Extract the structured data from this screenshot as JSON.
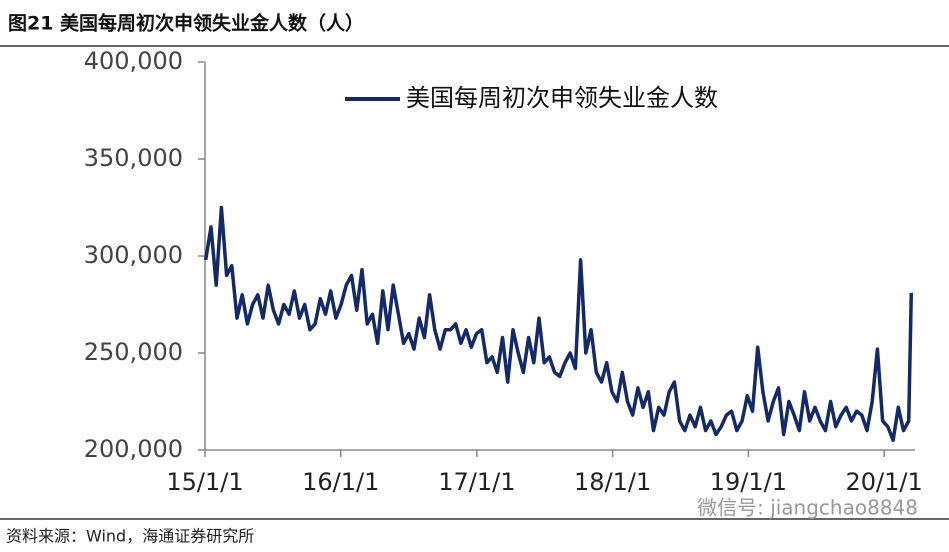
{
  "chart_data": {
    "type": "line",
    "title": "图21 美国每周初次申领失业金人数（人）",
    "source": "资料来源：Wind，海通证券研究所",
    "watermark": "微信号: jiangchao8848",
    "legend": "top",
    "x": [
      "2015-01-03",
      "2015-01-17",
      "2015-01-31",
      "2015-02-14",
      "2015-02-28",
      "2015-03-14",
      "2015-03-28",
      "2015-04-11",
      "2015-04-25",
      "2015-05-09",
      "2015-05-23",
      "2015-06-06",
      "2015-06-20",
      "2015-07-04",
      "2015-07-18",
      "2015-08-01",
      "2015-08-15",
      "2015-08-29",
      "2015-09-12",
      "2015-09-26",
      "2015-10-10",
      "2015-10-24",
      "2015-11-07",
      "2015-11-21",
      "2015-12-05",
      "2015-12-19",
      "2016-01-02",
      "2016-01-16",
      "2016-01-30",
      "2016-02-13",
      "2016-02-27",
      "2016-03-12",
      "2016-03-26",
      "2016-04-09",
      "2016-04-23",
      "2016-05-07",
      "2016-05-21",
      "2016-06-04",
      "2016-06-18",
      "2016-07-02",
      "2016-07-16",
      "2016-07-30",
      "2016-08-13",
      "2016-08-27",
      "2016-09-10",
      "2016-09-24",
      "2016-10-08",
      "2016-10-22",
      "2016-11-05",
      "2016-11-19",
      "2016-12-03",
      "2016-12-17",
      "2016-12-31",
      "2017-01-14",
      "2017-01-28",
      "2017-02-11",
      "2017-02-25",
      "2017-03-11",
      "2017-03-25",
      "2017-04-08",
      "2017-04-22",
      "2017-05-06",
      "2017-05-20",
      "2017-06-03",
      "2017-06-17",
      "2017-07-01",
      "2017-07-15",
      "2017-07-29",
      "2017-08-12",
      "2017-08-26",
      "2017-09-09",
      "2017-09-23",
      "2017-10-07",
      "2017-10-21",
      "2017-11-04",
      "2017-11-18",
      "2017-12-02",
      "2017-12-16",
      "2017-12-30",
      "2018-01-13",
      "2018-01-27",
      "2018-02-10",
      "2018-02-24",
      "2018-03-10",
      "2018-03-24",
      "2018-04-07",
      "2018-04-21",
      "2018-05-05",
      "2018-05-19",
      "2018-06-02",
      "2018-06-16",
      "2018-06-30",
      "2018-07-14",
      "2018-07-28",
      "2018-08-11",
      "2018-08-25",
      "2018-09-08",
      "2018-09-22",
      "2018-10-06",
      "2018-10-20",
      "2018-11-03",
      "2018-11-17",
      "2018-12-01",
      "2018-12-15",
      "2018-12-29",
      "2019-01-12",
      "2019-01-26",
      "2019-02-09",
      "2019-02-23",
      "2019-03-09",
      "2019-03-23",
      "2019-04-06",
      "2019-04-20",
      "2019-05-04",
      "2019-05-18",
      "2019-06-01",
      "2019-06-15",
      "2019-06-29",
      "2019-07-13",
      "2019-07-27",
      "2019-08-10",
      "2019-08-24",
      "2019-09-07",
      "2019-09-21",
      "2019-10-05",
      "2019-10-19",
      "2019-11-02",
      "2019-11-16",
      "2019-11-30",
      "2019-12-14",
      "2019-12-28",
      "2020-01-11",
      "2020-01-25",
      "2020-02-08",
      "2020-02-22",
      "2020-03-07",
      "2020-03-14"
    ],
    "series": [
      {
        "name": "美国每周初次申领失业金人数",
        "color": "#13296b",
        "values": [
          298000,
          315000,
          285000,
          325000,
          290000,
          295000,
          268000,
          280000,
          265000,
          275000,
          280000,
          268000,
          285000,
          272000,
          265000,
          275000,
          270000,
          282000,
          268000,
          275000,
          262000,
          265000,
          278000,
          270000,
          282000,
          268000,
          275000,
          285000,
          290000,
          272000,
          293000,
          265000,
          270000,
          255000,
          282000,
          262000,
          285000,
          270000,
          255000,
          260000,
          252000,
          268000,
          258000,
          280000,
          262000,
          252000,
          262000,
          262000,
          265000,
          255000,
          262000,
          253000,
          260000,
          262000,
          245000,
          248000,
          240000,
          258000,
          235000,
          262000,
          250000,
          240000,
          258000,
          245000,
          268000,
          245000,
          248000,
          240000,
          238000,
          245000,
          250000,
          242000,
          298000,
          250000,
          262000,
          240000,
          235000,
          245000,
          230000,
          225000,
          240000,
          225000,
          218000,
          232000,
          222000,
          230000,
          210000,
          222000,
          218000,
          230000,
          235000,
          215000,
          210000,
          218000,
          212000,
          222000,
          210000,
          215000,
          208000,
          212000,
          218000,
          220000,
          210000,
          215000,
          228000,
          220000,
          253000,
          230000,
          215000,
          225000,
          232000,
          208000,
          225000,
          218000,
          210000,
          230000,
          215000,
          222000,
          215000,
          210000,
          225000,
          212000,
          218000,
          222000,
          215000,
          220000,
          218000,
          210000,
          225000,
          252000,
          215000,
          212000,
          205000,
          222000,
          210000,
          215000,
          281000
        ]
      }
    ],
    "xlim": [
      "2015-01-01",
      "2020-03-24"
    ],
    "xticks": [
      {
        "value": "2015-01-01",
        "label": "15/1/1"
      },
      {
        "value": "2016-01-01",
        "label": "16/1/1"
      },
      {
        "value": "2017-01-01",
        "label": "17/1/1"
      },
      {
        "value": "2018-01-01",
        "label": "18/1/1"
      },
      {
        "value": "2019-01-01",
        "label": "19/1/1"
      },
      {
        "value": "2020-01-01",
        "label": "20/1/1"
      }
    ],
    "ylim": [
      200000,
      400000
    ],
    "yticks": [
      {
        "value": 200000,
        "label": "200,000"
      },
      {
        "value": 250000,
        "label": "250,000"
      },
      {
        "value": 300000,
        "label": "300,000"
      },
      {
        "value": 350000,
        "label": "350,000"
      },
      {
        "value": 400000,
        "label": "400,000"
      }
    ]
  }
}
